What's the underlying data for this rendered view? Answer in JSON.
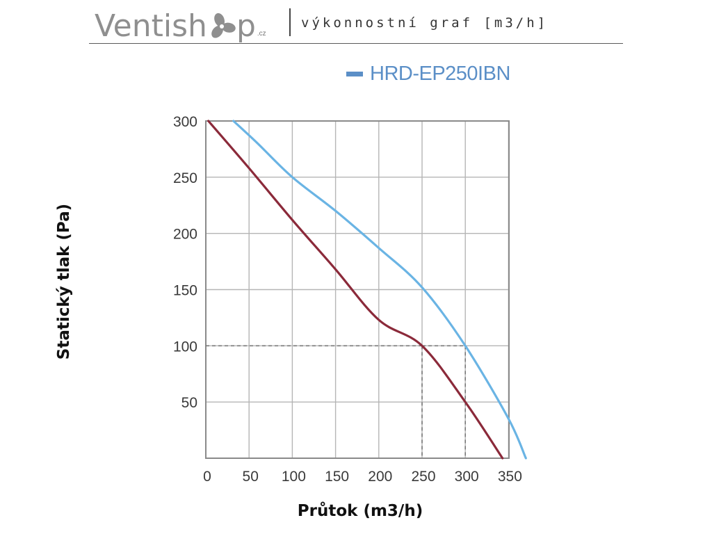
{
  "header": {
    "brand_text_left": "Ventish",
    "brand_icon": "fan-blade-icon",
    "brand_text_right": "p",
    "brand_tld": ".cz",
    "subtitle": "výkonnostní graf [m3/h]"
  },
  "colors": {
    "brand_gray": "#8f8f8f",
    "legend_blue": "#5b8fc7",
    "curve_blue": "#6ab4e4",
    "curve_red": "#8b2a3a",
    "grid": "#b5b5b5",
    "frame": "#8a8a8a",
    "guide": "#777777"
  },
  "chart_data": {
    "type": "line",
    "legend": [
      {
        "name": "HRD-EP250IBN",
        "color": "#5b8fc7"
      }
    ],
    "xlabel": "Průtok (m3/h)",
    "ylabel": "Statický tlak (Pa)",
    "xlim": [
      0,
      360
    ],
    "ylim": [
      0,
      300
    ],
    "x_ticks": [
      0,
      50,
      100,
      150,
      200,
      250,
      300,
      350
    ],
    "y_ticks": [
      50,
      100,
      150,
      200,
      250,
      300
    ],
    "grid": true,
    "legend_position": "top-right",
    "series": [
      {
        "color": "#6ab4e4",
        "points": [
          [
            32,
            300
          ],
          [
            60,
            280
          ],
          [
            100,
            250
          ],
          [
            150,
            220
          ],
          [
            200,
            187
          ],
          [
            250,
            152
          ],
          [
            300,
            100
          ],
          [
            350,
            35
          ],
          [
            370,
            0
          ]
        ]
      },
      {
        "color": "#8b2a3a",
        "points": [
          [
            3,
            300
          ],
          [
            50,
            258
          ],
          [
            100,
            212
          ],
          [
            150,
            168
          ],
          [
            200,
            123
          ],
          [
            250,
            100
          ],
          [
            300,
            50
          ],
          [
            343,
            0
          ]
        ]
      }
    ],
    "reference_lines": [
      {
        "from": [
          0,
          100
        ],
        "to": [
          250,
          100
        ]
      },
      {
        "from": [
          250,
          100
        ],
        "to": [
          250,
          0
        ]
      },
      {
        "from": [
          250,
          100
        ],
        "to": [
          300,
          100
        ]
      },
      {
        "from": [
          300,
          100
        ],
        "to": [
          300,
          0
        ]
      }
    ]
  }
}
